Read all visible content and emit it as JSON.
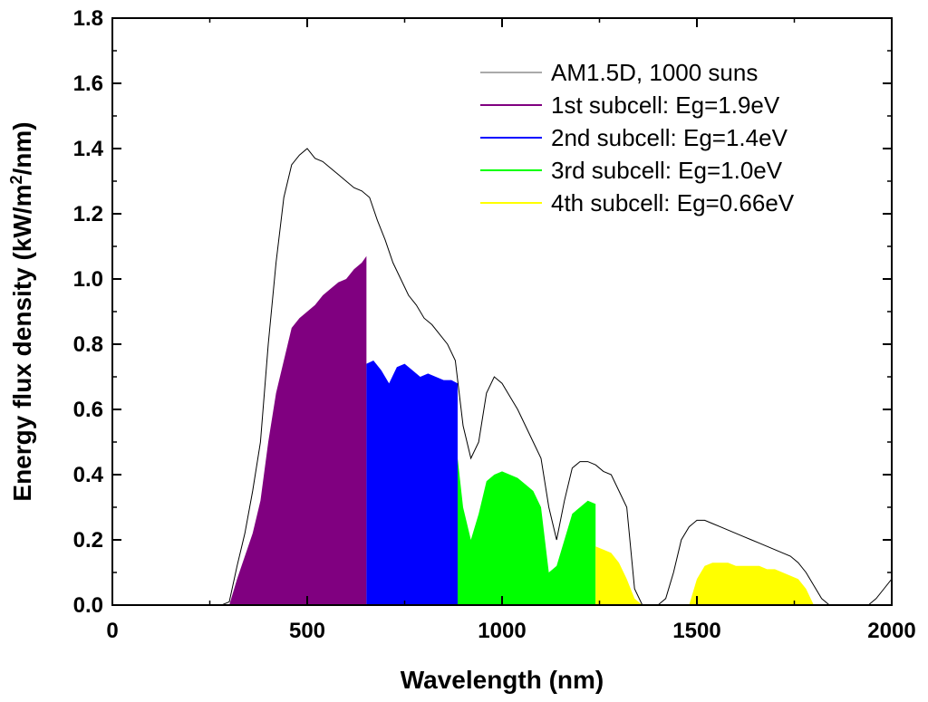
{
  "chart_data": {
    "type": "area",
    "title": "",
    "xlabel": "Wavelength (nm)",
    "ylabel": "Energy flux density (kW/m²/nm)",
    "ylabel_parts": {
      "pre": "Energy flux density (kW/m",
      "sup": "2",
      "post": "/nm)"
    },
    "xlim": [
      0,
      2000
    ],
    "ylim": [
      0,
      1.8
    ],
    "xticks": [
      0,
      500,
      1000,
      1500,
      2000
    ],
    "yticks": [
      0.0,
      0.2,
      0.4,
      0.6,
      0.8,
      1.0,
      1.2,
      1.4,
      1.6,
      1.8
    ],
    "ytick_labels": [
      "0.0",
      "0.2",
      "0.4",
      "0.6",
      "0.8",
      "1.0",
      "1.2",
      "1.4",
      "1.6",
      "1.8"
    ],
    "xtick_labels": [
      "0",
      "500",
      "1000",
      "1500",
      "2000"
    ],
    "grid": false,
    "legend_position": "top-right",
    "spectrum": {
      "name": "AM1.5D, 1000 suns",
      "color": "#000000",
      "x": [
        0,
        280,
        300,
        320,
        340,
        360,
        380,
        400,
        420,
        440,
        460,
        480,
        500,
        520,
        540,
        560,
        580,
        600,
        620,
        640,
        660,
        680,
        700,
        720,
        740,
        760,
        780,
        800,
        820,
        840,
        860,
        880,
        900,
        920,
        940,
        960,
        980,
        1000,
        1020,
        1040,
        1060,
        1080,
        1100,
        1120,
        1140,
        1160,
        1180,
        1200,
        1220,
        1240,
        1260,
        1280,
        1300,
        1320,
        1340,
        1360,
        1380,
        1400,
        1420,
        1440,
        1460,
        1480,
        1500,
        1520,
        1540,
        1560,
        1580,
        1600,
        1620,
        1640,
        1660,
        1680,
        1700,
        1720,
        1740,
        1760,
        1780,
        1800,
        1820,
        1840,
        1860,
        1880,
        1900,
        1920,
        1940,
        1960,
        1980,
        2000
      ],
      "y": [
        0,
        0,
        0.01,
        0.12,
        0.22,
        0.35,
        0.5,
        0.8,
        1.05,
        1.25,
        1.35,
        1.38,
        1.4,
        1.37,
        1.36,
        1.34,
        1.32,
        1.3,
        1.28,
        1.27,
        1.25,
        1.18,
        1.12,
        1.05,
        1.0,
        0.95,
        0.92,
        0.88,
        0.86,
        0.83,
        0.8,
        0.75,
        0.55,
        0.45,
        0.5,
        0.65,
        0.7,
        0.68,
        0.64,
        0.6,
        0.55,
        0.5,
        0.45,
        0.3,
        0.2,
        0.32,
        0.42,
        0.44,
        0.44,
        0.43,
        0.41,
        0.4,
        0.35,
        0.3,
        0.05,
        0.0,
        0.0,
        0.0,
        0.02,
        0.1,
        0.2,
        0.24,
        0.26,
        0.26,
        0.25,
        0.24,
        0.23,
        0.22,
        0.21,
        0.2,
        0.19,
        0.18,
        0.17,
        0.16,
        0.15,
        0.13,
        0.1,
        0.06,
        0.02,
        0.0,
        0.0,
        0.0,
        0.0,
        0.0,
        0.0,
        0.02,
        0.05,
        0.08
      ]
    },
    "subcells": [
      {
        "name": "1st subcell: Eg=1.9eV",
        "color": "#800080",
        "x": [
          300,
          320,
          340,
          360,
          380,
          400,
          420,
          440,
          460,
          480,
          500,
          520,
          540,
          560,
          580,
          600,
          620,
          640,
          652
        ],
        "y": [
          0.0,
          0.08,
          0.15,
          0.22,
          0.32,
          0.5,
          0.65,
          0.75,
          0.85,
          0.88,
          0.9,
          0.92,
          0.95,
          0.97,
          0.99,
          1.0,
          1.03,
          1.05,
          1.07
        ]
      },
      {
        "name": "2nd subcell: Eg=1.4eV",
        "color": "#0000ff",
        "x": [
          652,
          670,
          690,
          710,
          730,
          750,
          770,
          790,
          810,
          830,
          850,
          870,
          886
        ],
        "y": [
          0.74,
          0.75,
          0.72,
          0.68,
          0.73,
          0.74,
          0.72,
          0.7,
          0.71,
          0.7,
          0.69,
          0.69,
          0.68
        ]
      },
      {
        "name": "3rd subcell: Eg=1.0eV",
        "color": "#00ff00",
        "x": [
          886,
          900,
          920,
          940,
          960,
          980,
          1000,
          1020,
          1040,
          1060,
          1080,
          1100,
          1120,
          1140,
          1160,
          1180,
          1200,
          1220,
          1240
        ],
        "y": [
          0.45,
          0.3,
          0.2,
          0.28,
          0.38,
          0.4,
          0.41,
          0.4,
          0.39,
          0.37,
          0.35,
          0.3,
          0.1,
          0.12,
          0.2,
          0.28,
          0.3,
          0.32,
          0.31
        ]
      },
      {
        "name": "4th subcell: Eg=0.66eV",
        "color": "#ffff00",
        "x": [
          1240,
          1260,
          1280,
          1300,
          1320,
          1340,
          1360,
          1480,
          1500,
          1520,
          1540,
          1560,
          1580,
          1600,
          1620,
          1640,
          1660,
          1680,
          1700,
          1720,
          1740,
          1760,
          1780,
          1800
        ],
        "y": [
          0.18,
          0.17,
          0.16,
          0.13,
          0.08,
          0.02,
          0.0,
          0.0,
          0.08,
          0.12,
          0.13,
          0.13,
          0.13,
          0.12,
          0.12,
          0.12,
          0.12,
          0.11,
          0.11,
          0.1,
          0.09,
          0.08,
          0.05,
          0.0
        ]
      }
    ]
  }
}
